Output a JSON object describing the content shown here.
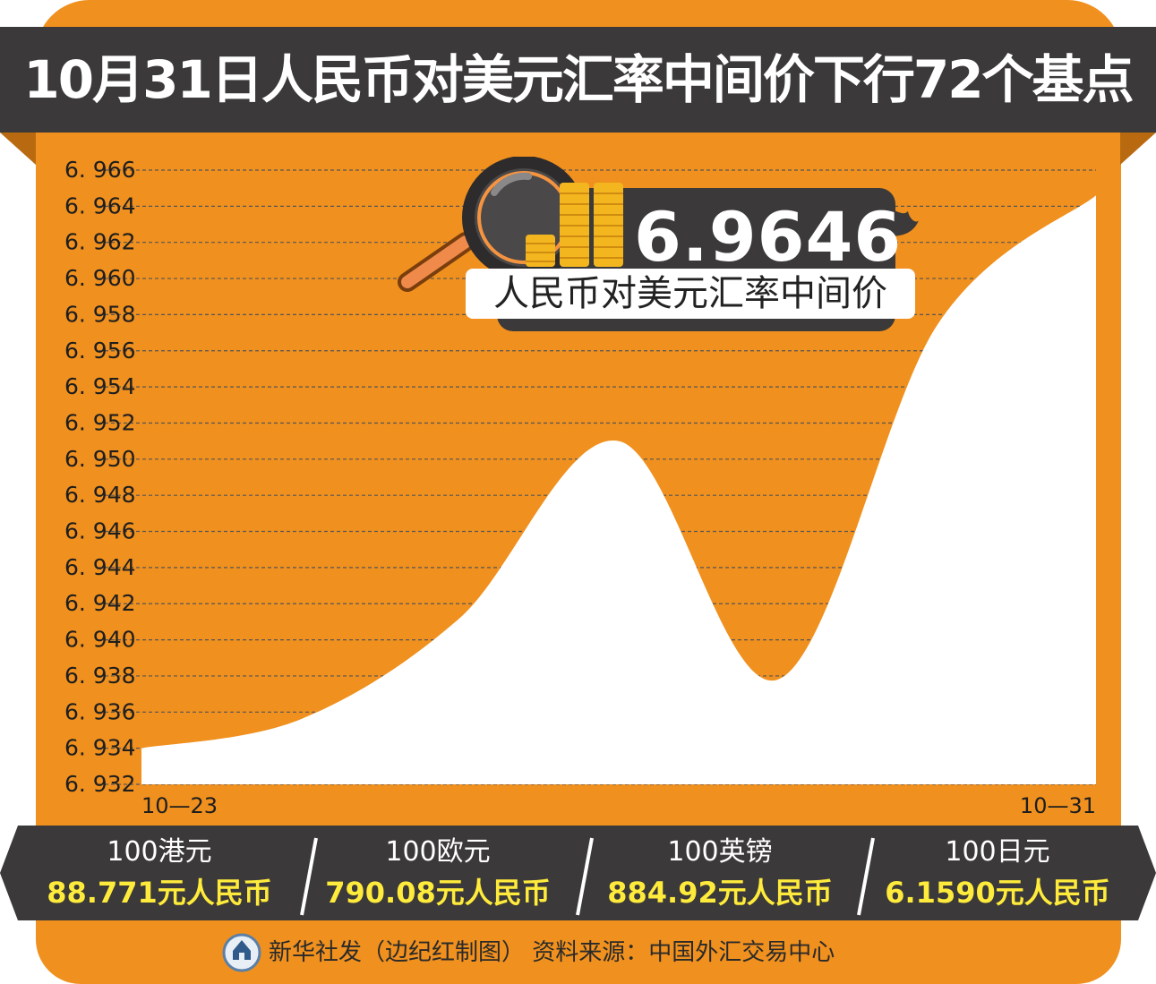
{
  "title": "10月31日人民币对美元汇率中间价下行72个基点",
  "callout": {
    "value": "6.9646",
    "label": "人民币对美元汇率中间价"
  },
  "chart_data": {
    "type": "area",
    "x_labels": [
      "10-23",
      "10-31"
    ],
    "x": [
      "10-23",
      "10-24",
      "10-25",
      "10-26",
      "10-27",
      "10-30",
      "10-31"
    ],
    "values": [
      6.934,
      6.9356,
      6.9412,
      6.951,
      6.9378,
      6.9574,
      6.9646
    ],
    "yticks": [
      "6.966",
      "6.964",
      "6.962",
      "6.960",
      "6.958",
      "6.956",
      "6.954",
      "6.952",
      "6.950",
      "6.948",
      "6.946",
      "6.944",
      "6.942",
      "6.940",
      "6.938",
      "6.936",
      "6.934",
      "6.932"
    ],
    "ylim": [
      6.932,
      6.966
    ],
    "grid": true,
    "colors": {
      "background": "#f0901e",
      "fill": "#ffffff",
      "grid": "#555555"
    }
  },
  "rates": [
    {
      "unit": "100港元",
      "value": "88.771元人民币"
    },
    {
      "unit": "100欧元",
      "value": "790.08元人民币"
    },
    {
      "unit": "100英镑",
      "value": "884.92元人民币"
    },
    {
      "unit": "100日元",
      "value": "6.1590元人民币"
    }
  ],
  "footer": "新华社发（边纪红制图） 资料来源：中国外汇交易中心",
  "colors": {
    "orange": "#f0901e",
    "dark": "#3b3939",
    "highlight": "#ffeb3b"
  }
}
